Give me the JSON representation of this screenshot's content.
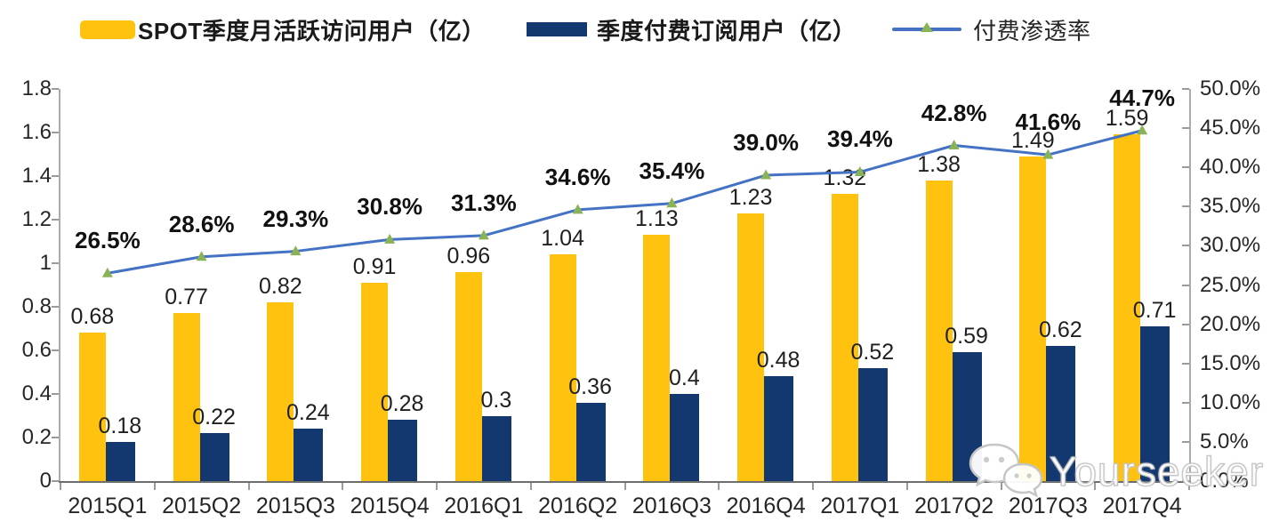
{
  "legend": {
    "items": [
      {
        "label": "SPOT季度月活跃访问用户（亿）",
        "swatch": "yellow-bar"
      },
      {
        "label": "季度付费订阅用户（亿）",
        "swatch": "navy-bar"
      },
      {
        "label": "付费渗透率",
        "swatch": "line-with-triangle-marker"
      }
    ]
  },
  "chart_data": {
    "type": "bar",
    "subtype": "grouped-bars-with-line-overlay",
    "categories": [
      "2015Q1",
      "2015Q2",
      "2015Q3",
      "2015Q4",
      "2016Q1",
      "2016Q2",
      "2016Q3",
      "2016Q4",
      "2017Q1",
      "2017Q2",
      "2017Q3",
      "2017Q4"
    ],
    "series": [
      {
        "name": "SPOT季度月活跃访问用户（亿）",
        "type": "bar",
        "axis": "left",
        "color": "#FFC20E",
        "values": [
          0.68,
          0.77,
          0.82,
          0.91,
          0.96,
          1.04,
          1.13,
          1.23,
          1.32,
          1.38,
          1.49,
          1.59
        ],
        "labels": [
          "0.68",
          "0.77",
          "0.82",
          "0.91",
          "0.96",
          "1.04",
          "1.13",
          "1.23",
          "1.32",
          "1.38",
          "1.49",
          "1.59"
        ]
      },
      {
        "name": "季度付费订阅用户（亿）",
        "type": "bar",
        "axis": "left",
        "color": "#13386F",
        "values": [
          0.18,
          0.22,
          0.24,
          0.28,
          0.3,
          0.36,
          0.4,
          0.48,
          0.52,
          0.59,
          0.62,
          0.71
        ],
        "labels": [
          "0.18",
          "0.22",
          "0.24",
          "0.28",
          "0.3",
          "0.36",
          "0.4",
          "0.48",
          "0.52",
          "0.59",
          "0.62",
          "0.71"
        ]
      },
      {
        "name": "付费渗透率",
        "type": "line",
        "axis": "right",
        "color": "#4472C4",
        "marker": "triangle",
        "marker_color": "#8AB357",
        "values": [
          26.5,
          28.6,
          29.3,
          30.8,
          31.3,
          34.6,
          35.4,
          39.0,
          39.4,
          42.8,
          41.6,
          44.7
        ],
        "labels": [
          "26.5%",
          "28.6%",
          "29.3%",
          "30.8%",
          "31.3%",
          "34.6%",
          "35.4%",
          "39.0%",
          "39.4%",
          "42.8%",
          "41.6%",
          "44.7%"
        ]
      }
    ],
    "left_axis": {
      "min": 0,
      "max": 1.8,
      "ticks": [
        "1.8",
        "1.6",
        "1.4",
        "1.2",
        "1",
        "0.8",
        "0.6",
        "0.4",
        "0.2",
        "0"
      ]
    },
    "right_axis": {
      "min": 0,
      "max": 50,
      "ticks": [
        "50.0%",
        "45.0%",
        "40.0%",
        "35.0%",
        "30.0%",
        "25.0%",
        "20.0%",
        "15.0%",
        "10.0%",
        "5.0%",
        "0.0%"
      ]
    },
    "grid": false,
    "legend_position": "top"
  },
  "watermark": {
    "icon": "wechat-icon",
    "text": "Yourseeker"
  }
}
